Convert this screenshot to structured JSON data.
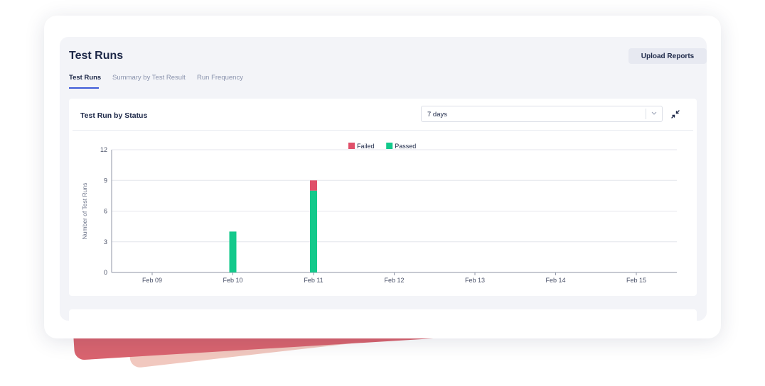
{
  "header": {
    "title": "Test Runs",
    "upload_label": "Upload Reports"
  },
  "tabs": [
    {
      "label": "Test Runs",
      "active": true
    },
    {
      "label": "Summary by Test Result",
      "active": false
    },
    {
      "label": "Run Frequency",
      "active": false
    }
  ],
  "chart_panel": {
    "title": "Test Run by Status",
    "range_select": {
      "value": "7 days"
    },
    "icons": {
      "dropdown": "chevron-down-icon",
      "collapse": "collapse-icon"
    }
  },
  "colors": {
    "failed": "#e0506a",
    "passed": "#13c98b",
    "accent": "#3e5bd8",
    "title": "#1d2848",
    "deco_red": "#d9646f",
    "deco_pink": "#f1c8bf"
  },
  "chart_data": {
    "type": "bar",
    "stacked": true,
    "categories": [
      "Feb 09",
      "Feb 10",
      "Feb 11",
      "Feb 12",
      "Feb 13",
      "Feb 14",
      "Feb 15"
    ],
    "series": [
      {
        "name": "Passed",
        "values": [
          0,
          4,
          8,
          0,
          0,
          0,
          0
        ]
      },
      {
        "name": "Failed",
        "values": [
          0,
          0,
          1,
          0,
          0,
          0,
          0
        ]
      }
    ],
    "ylabel": "Number of Test Runs",
    "xlabel": "",
    "ylim": [
      0,
      12
    ],
    "yticks": [
      0,
      3,
      6,
      9,
      12
    ],
    "legend": [
      "Failed",
      "Passed"
    ],
    "legend_position": "top-center",
    "grid": true
  }
}
